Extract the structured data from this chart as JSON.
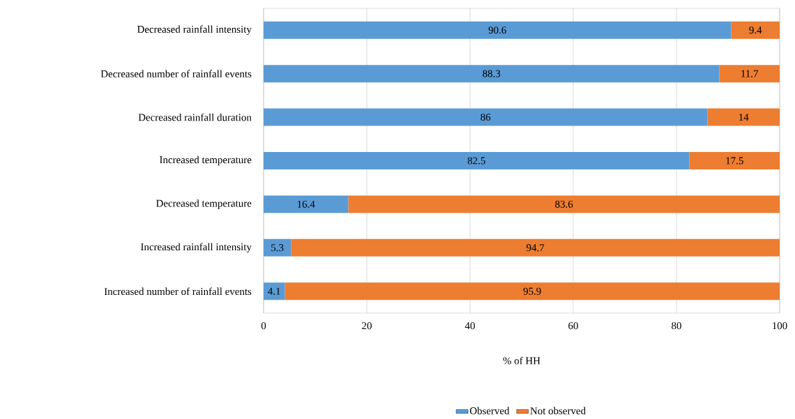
{
  "chart_data": {
    "type": "bar",
    "orientation": "horizontal",
    "stacked": true,
    "xlabel": "% of HH",
    "categories": [
      "Decreased rainfall intensity",
      "Decreased number of rainfall events",
      "Decreased rainfall duration",
      "Increased temperature",
      "Decreased temperature",
      "Increased rainfall intensity",
      "Increased number of rainfall events"
    ],
    "series": [
      {
        "name": "Observed",
        "color": "#5b9bd5",
        "values": [
          90.6,
          88.3,
          86,
          82.5,
          16.4,
          5.3,
          4.1
        ]
      },
      {
        "name": "Not observed",
        "color": "#ed7d31",
        "values": [
          9.4,
          11.7,
          14,
          17.5,
          83.6,
          94.7,
          95.9
        ]
      }
    ],
    "xlim": [
      0,
      100
    ],
    "xticks": [
      0,
      20,
      40,
      60,
      80,
      100
    ],
    "grid": "x",
    "legend": "bottom",
    "data_labels": true
  }
}
